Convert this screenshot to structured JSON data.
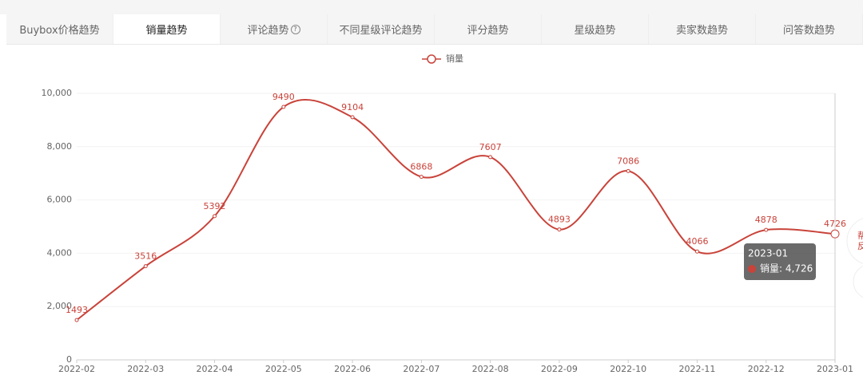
{
  "tabs": [
    {
      "label": "Buybox价格趋势",
      "active": false
    },
    {
      "label": "销量趋势",
      "active": true
    },
    {
      "label": "评论趋势",
      "active": false,
      "help_icon": true
    },
    {
      "label": "不同星级评论趋势",
      "active": false
    },
    {
      "label": "评分趋势",
      "active": false
    },
    {
      "label": "星级趋势",
      "active": false
    },
    {
      "label": "卖家数趋势",
      "active": false
    },
    {
      "label": "问答数趋势",
      "active": false
    }
  ],
  "chart_data": {
    "type": "line",
    "smooth": true,
    "categories": [
      "2022-02",
      "2022-03",
      "2022-04",
      "2022-05",
      "2022-06",
      "2022-07",
      "2022-08",
      "2022-09",
      "2022-10",
      "2022-11",
      "2022-12",
      "2023-01"
    ],
    "series": [
      {
        "name": "销量",
        "color": "#c9433a",
        "values": [
          1493,
          3516,
          5392,
          9490,
          9104,
          6868,
          7607,
          4893,
          7086,
          4066,
          4878,
          4726
        ]
      }
    ],
    "ylim": [
      0,
      10000
    ],
    "yticks": [
      0,
      {
        "value": 2000,
        "label": "2,000"
      },
      {
        "value": 4000,
        "label": "4,000"
      },
      {
        "value": 6000,
        "label": "6,000"
      },
      {
        "value": 8000,
        "label": "8,000"
      },
      {
        "value": 10000,
        "label": "10,000"
      }
    ],
    "grid": true,
    "legend": "top",
    "tooltip": {
      "category_index": 11,
      "title": "2023-01",
      "label": "销量: 4,726"
    }
  },
  "side_button_texts": [
    "帮",
    "反"
  ]
}
